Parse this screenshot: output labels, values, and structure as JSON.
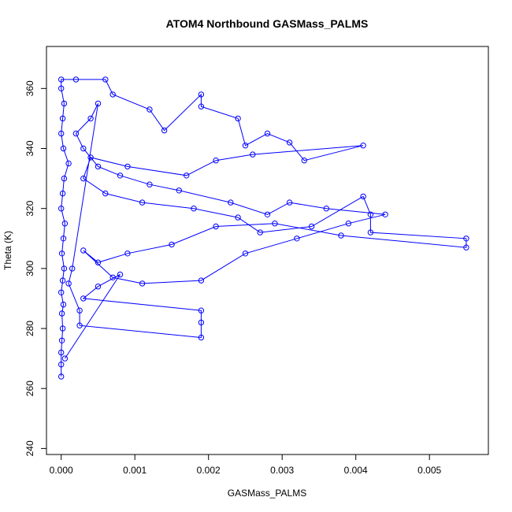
{
  "chart_data": {
    "type": "scatter",
    "title": "ATOM4 Northbound GASMass_PALMS",
    "xlabel": "GASMass_PALMS",
    "ylabel": "Theta (K)",
    "xlim": [
      -0.0002,
      0.0058
    ],
    "ylim": [
      238,
      374
    ],
    "x_ticks": [
      "0.000",
      "0.001",
      "0.002",
      "0.003",
      "0.004",
      "0.005"
    ],
    "x_tick_values": [
      0,
      0.001,
      0.002,
      0.003,
      0.004,
      0.005
    ],
    "y_ticks": [
      "240",
      "260",
      "280",
      "300",
      "320",
      "340",
      "360"
    ],
    "y_tick_values": [
      240,
      260,
      280,
      300,
      320,
      340,
      360
    ],
    "grid": false,
    "markers": "open circles connected by lines",
    "series": [
      {
        "color": "#0000ff",
        "points": [
          [
            0.0,
            264
          ],
          [
            0.0,
            268
          ],
          [
            0.0,
            272
          ],
          [
            1e-05,
            276
          ],
          [
            2e-05,
            280
          ],
          [
            1e-05,
            285
          ],
          [
            3e-05,
            288
          ],
          [
            0.0,
            292
          ],
          [
            2e-05,
            296
          ],
          [
            4e-05,
            300
          ],
          [
            1e-05,
            305
          ],
          [
            3e-05,
            310
          ],
          [
            5e-05,
            315
          ],
          [
            0.0,
            320
          ],
          [
            2e-05,
            325
          ],
          [
            4e-05,
            330
          ],
          [
            0.0001,
            335
          ],
          [
            3e-05,
            340
          ],
          [
            0.0,
            345
          ],
          [
            2e-05,
            350
          ],
          [
            4e-05,
            355
          ],
          [
            0.0,
            360
          ],
          [
            0.0,
            363
          ],
          [
            0.0002,
            363
          ],
          [
            0.0006,
            363
          ],
          [
            0.0007,
            358
          ],
          [
            0.0012,
            353
          ],
          [
            0.0014,
            346
          ],
          [
            0.0019,
            358
          ],
          [
            0.0019,
            354
          ],
          [
            0.0024,
            350
          ],
          [
            0.0025,
            341
          ],
          [
            0.0028,
            345
          ],
          [
            0.0031,
            342
          ],
          [
            0.0033,
            336
          ],
          [
            0.0041,
            341
          ],
          [
            0.0026,
            338
          ],
          [
            0.0021,
            336
          ],
          [
            0.0017,
            331
          ],
          [
            0.0009,
            334
          ],
          [
            0.0004,
            337
          ],
          [
            0.0003,
            330
          ],
          [
            0.0006,
            325
          ],
          [
            0.0011,
            322
          ],
          [
            0.0018,
            320
          ],
          [
            0.0024,
            317
          ],
          [
            0.0027,
            312
          ],
          [
            0.0034,
            314
          ],
          [
            0.0041,
            324
          ],
          [
            0.0042,
            318
          ],
          [
            0.0042,
            312
          ],
          [
            0.0055,
            310
          ],
          [
            0.0055,
            307
          ],
          [
            0.0038,
            311
          ],
          [
            0.0029,
            315
          ],
          [
            0.0021,
            314
          ],
          [
            0.0015,
            308
          ],
          [
            0.0009,
            305
          ],
          [
            0.0005,
            302
          ],
          [
            0.0003,
            306
          ],
          [
            0.0007,
            297
          ],
          [
            0.0011,
            295
          ],
          [
            0.0019,
            296
          ],
          [
            0.0025,
            305
          ],
          [
            0.0032,
            310
          ],
          [
            0.0039,
            315
          ],
          [
            0.0044,
            318
          ],
          [
            0.0036,
            320
          ],
          [
            0.0031,
            322
          ],
          [
            0.0028,
            318
          ],
          [
            0.0023,
            322
          ],
          [
            0.0016,
            326
          ],
          [
            0.0012,
            328
          ],
          [
            0.0008,
            331
          ],
          [
            0.0005,
            334
          ],
          [
            0.0003,
            340
          ],
          [
            0.0002,
            345
          ],
          [
            0.0004,
            350
          ],
          [
            0.0005,
            355
          ],
          [
            0.00015,
            300
          ],
          [
            0.0001,
            295
          ],
          [
            0.00025,
            286
          ],
          [
            0.00025,
            281
          ],
          [
            0.0019,
            277
          ],
          [
            0.0019,
            282
          ],
          [
            0.0019,
            286
          ],
          [
            0.0003,
            290
          ],
          [
            0.0005,
            294
          ],
          [
            0.0008,
            298
          ],
          [
            5e-05,
            270
          ]
        ]
      }
    ]
  }
}
